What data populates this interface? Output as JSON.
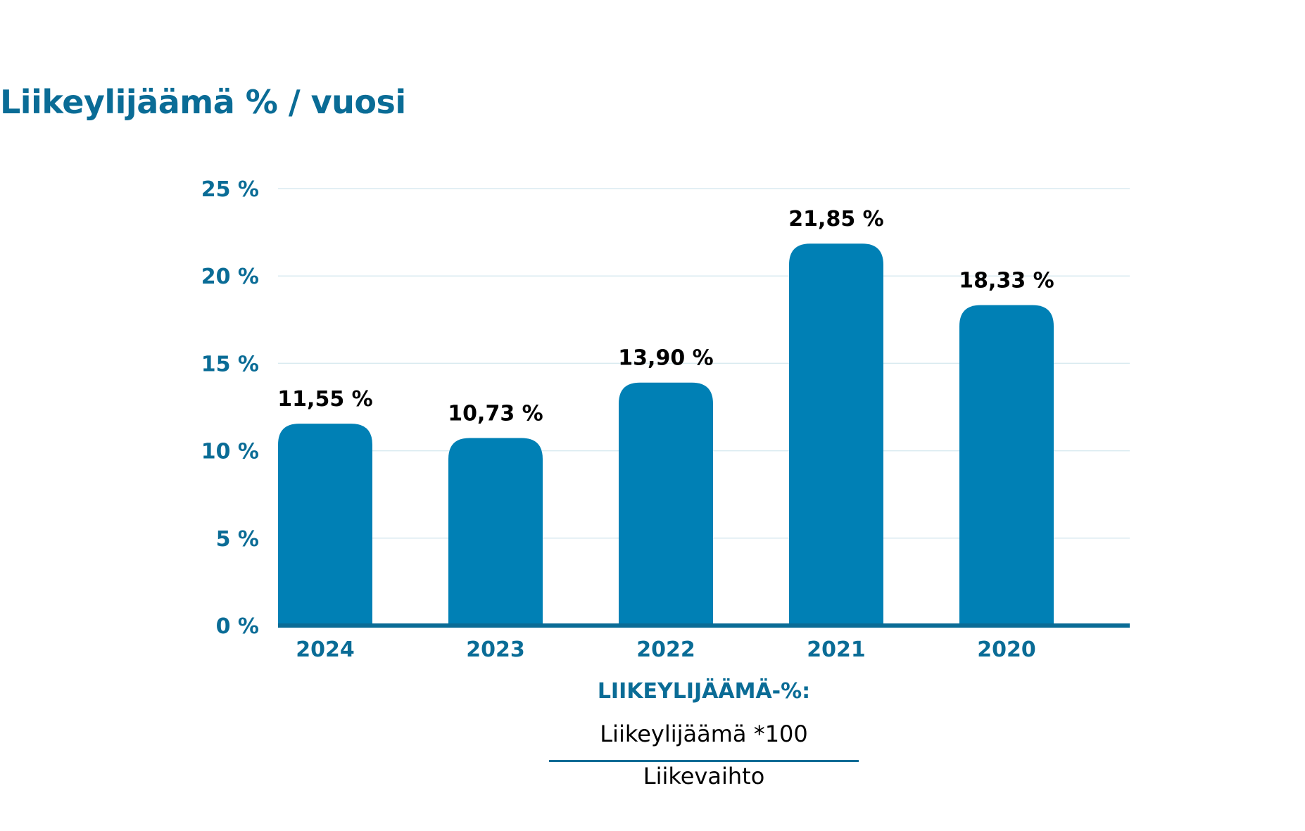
{
  "title": "Liikeylijäämä % / vuosi",
  "colors": {
    "bar": "#0080b5",
    "axis_text": "#0a6c96",
    "baseline": "#0a6c96",
    "gridline": "#d9eaf0",
    "data_label": "#000000"
  },
  "chart_data": {
    "type": "bar",
    "title": "Liikeylijäämä % / vuosi",
    "categories": [
      "2024",
      "2023",
      "2022",
      "2021",
      "2020"
    ],
    "values": [
      11.55,
      10.73,
      13.9,
      21.85,
      18.33
    ],
    "data_labels": [
      "11,55 %",
      "10,73 %",
      "13,90 %",
      "21,85 %",
      "18,33 %"
    ],
    "y_ticks": [
      0,
      5,
      10,
      15,
      20,
      25
    ],
    "y_tick_labels": [
      "0 %",
      "5 %",
      "10 %",
      "15 %",
      "20 %",
      "25 %"
    ],
    "ylim": [
      0,
      25
    ],
    "xlabel": "",
    "ylabel": "",
    "grid": true,
    "legend": "none"
  },
  "formula": {
    "heading": "LIIKEYLIJÄÄMÄ-%:",
    "numerator": "Liikeylijäämä *100",
    "denominator": "Liikevaihto"
  }
}
